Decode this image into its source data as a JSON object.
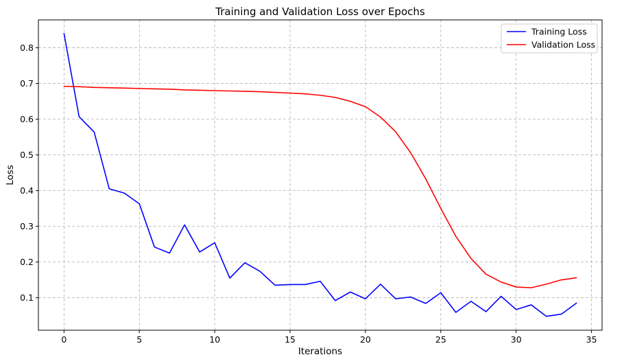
{
  "chart_data": {
    "type": "line",
    "title": "Training and Validation Loss over Epochs",
    "xlabel": "Iterations",
    "ylabel": "Loss",
    "xlim": [
      -1.7,
      35.7
    ],
    "ylim": [
      0.009,
      0.878
    ],
    "xticks": [
      0,
      5,
      10,
      15,
      20,
      25,
      30,
      35
    ],
    "yticks": [
      0.1,
      0.2,
      0.3,
      0.4,
      0.5,
      0.6,
      0.7,
      0.8
    ],
    "grid": true,
    "legend_position": "top-right",
    "x": [
      0,
      1,
      2,
      3,
      4,
      5,
      6,
      7,
      8,
      9,
      10,
      11,
      12,
      13,
      14,
      15,
      16,
      17,
      18,
      19,
      20,
      21,
      22,
      23,
      24,
      25,
      26,
      27,
      28,
      29,
      30,
      31,
      32,
      33,
      34
    ],
    "series": [
      {
        "name": "Training Loss",
        "color": "#0000ff",
        "values": [
          0.84,
          0.607,
          0.564,
          0.405,
          0.393,
          0.363,
          0.242,
          0.225,
          0.304,
          0.228,
          0.254,
          0.155,
          0.198,
          0.174,
          0.135,
          0.137,
          0.137,
          0.146,
          0.092,
          0.116,
          0.097,
          0.138,
          0.097,
          0.102,
          0.084,
          0.114,
          0.059,
          0.09,
          0.061,
          0.104,
          0.067,
          0.08,
          0.048,
          0.054,
          0.085
        ]
      },
      {
        "name": "Validation Loss",
        "color": "#ff0000",
        "values": [
          0.692,
          0.691,
          0.689,
          0.688,
          0.687,
          0.686,
          0.685,
          0.684,
          0.682,
          0.681,
          0.68,
          0.679,
          0.678,
          0.677,
          0.675,
          0.673,
          0.671,
          0.667,
          0.661,
          0.65,
          0.635,
          0.606,
          0.565,
          0.506,
          0.433,
          0.35,
          0.272,
          0.21,
          0.166,
          0.144,
          0.13,
          0.128,
          0.138,
          0.15,
          0.156
        ]
      }
    ]
  }
}
